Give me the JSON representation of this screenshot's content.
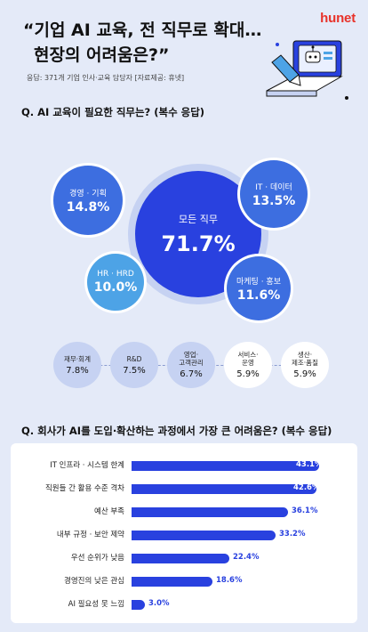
{
  "brand": "hunet",
  "header": {
    "title_line1": "“기업 AI 교육, 전 직무로 확대…",
    "title_line2": "현장의 어려움은?”",
    "source": "응답: 371개 기업 인사·교육 담당자 [자료제공: 휴넷]"
  },
  "colors": {
    "primary": "#2941df",
    "mid": "#3d6ee0",
    "light": "#4da3e6",
    "bubble_bg": "#c6d2f2",
    "brand": "#e8322a"
  },
  "icons": [
    "laptop-illustration",
    "robot-icon",
    "pencil-icon"
  ],
  "chart_data": [
    {
      "type": "bubble",
      "title": "Q. AI 교육이 필요한 직무는? (복수 응답)",
      "unit": "%",
      "categories": [
        "모든 직무",
        "경영 · 기획",
        "IT · 데이터",
        "마케팅 · 홍보",
        "HR · HRD",
        "재무·회계",
        "R&D",
        "영업·\n고객관리",
        "서비스·\n운영",
        "생산·\n제조·품질"
      ],
      "values": [
        71.7,
        14.8,
        13.5,
        11.6,
        10.0,
        7.8,
        7.5,
        6.7,
        5.9,
        5.9
      ],
      "labels": [
        "71.7%",
        "14.8%",
        "13.5%",
        "11.6%",
        "10.0%",
        "7.8%",
        "7.5%",
        "6.7%",
        "5.9%",
        "5.9%"
      ]
    },
    {
      "type": "bar",
      "orientation": "horizontal",
      "title": "Q. 회사가 AI를 도입·확산하는 과정에서 가장 큰 어려움은? (복수 응답)",
      "unit": "%",
      "categories": [
        "IT 인프라 · 시스템 한계",
        "직원들 간 활용 수준 격차",
        "예산 부족",
        "내부 규정 · 보안 제약",
        "우선 순위가 낮음",
        "경영진의 낮은 관심",
        "AI 필요성 못 느낌"
      ],
      "values": [
        43.1,
        42.6,
        36.1,
        33.2,
        22.4,
        18.6,
        3.0
      ],
      "labels": [
        "43.1%",
        "42.6%",
        "36.1%",
        "33.2%",
        "22.4%",
        "18.6%",
        "3.0%"
      ],
      "xlim": [
        0,
        45
      ]
    }
  ]
}
